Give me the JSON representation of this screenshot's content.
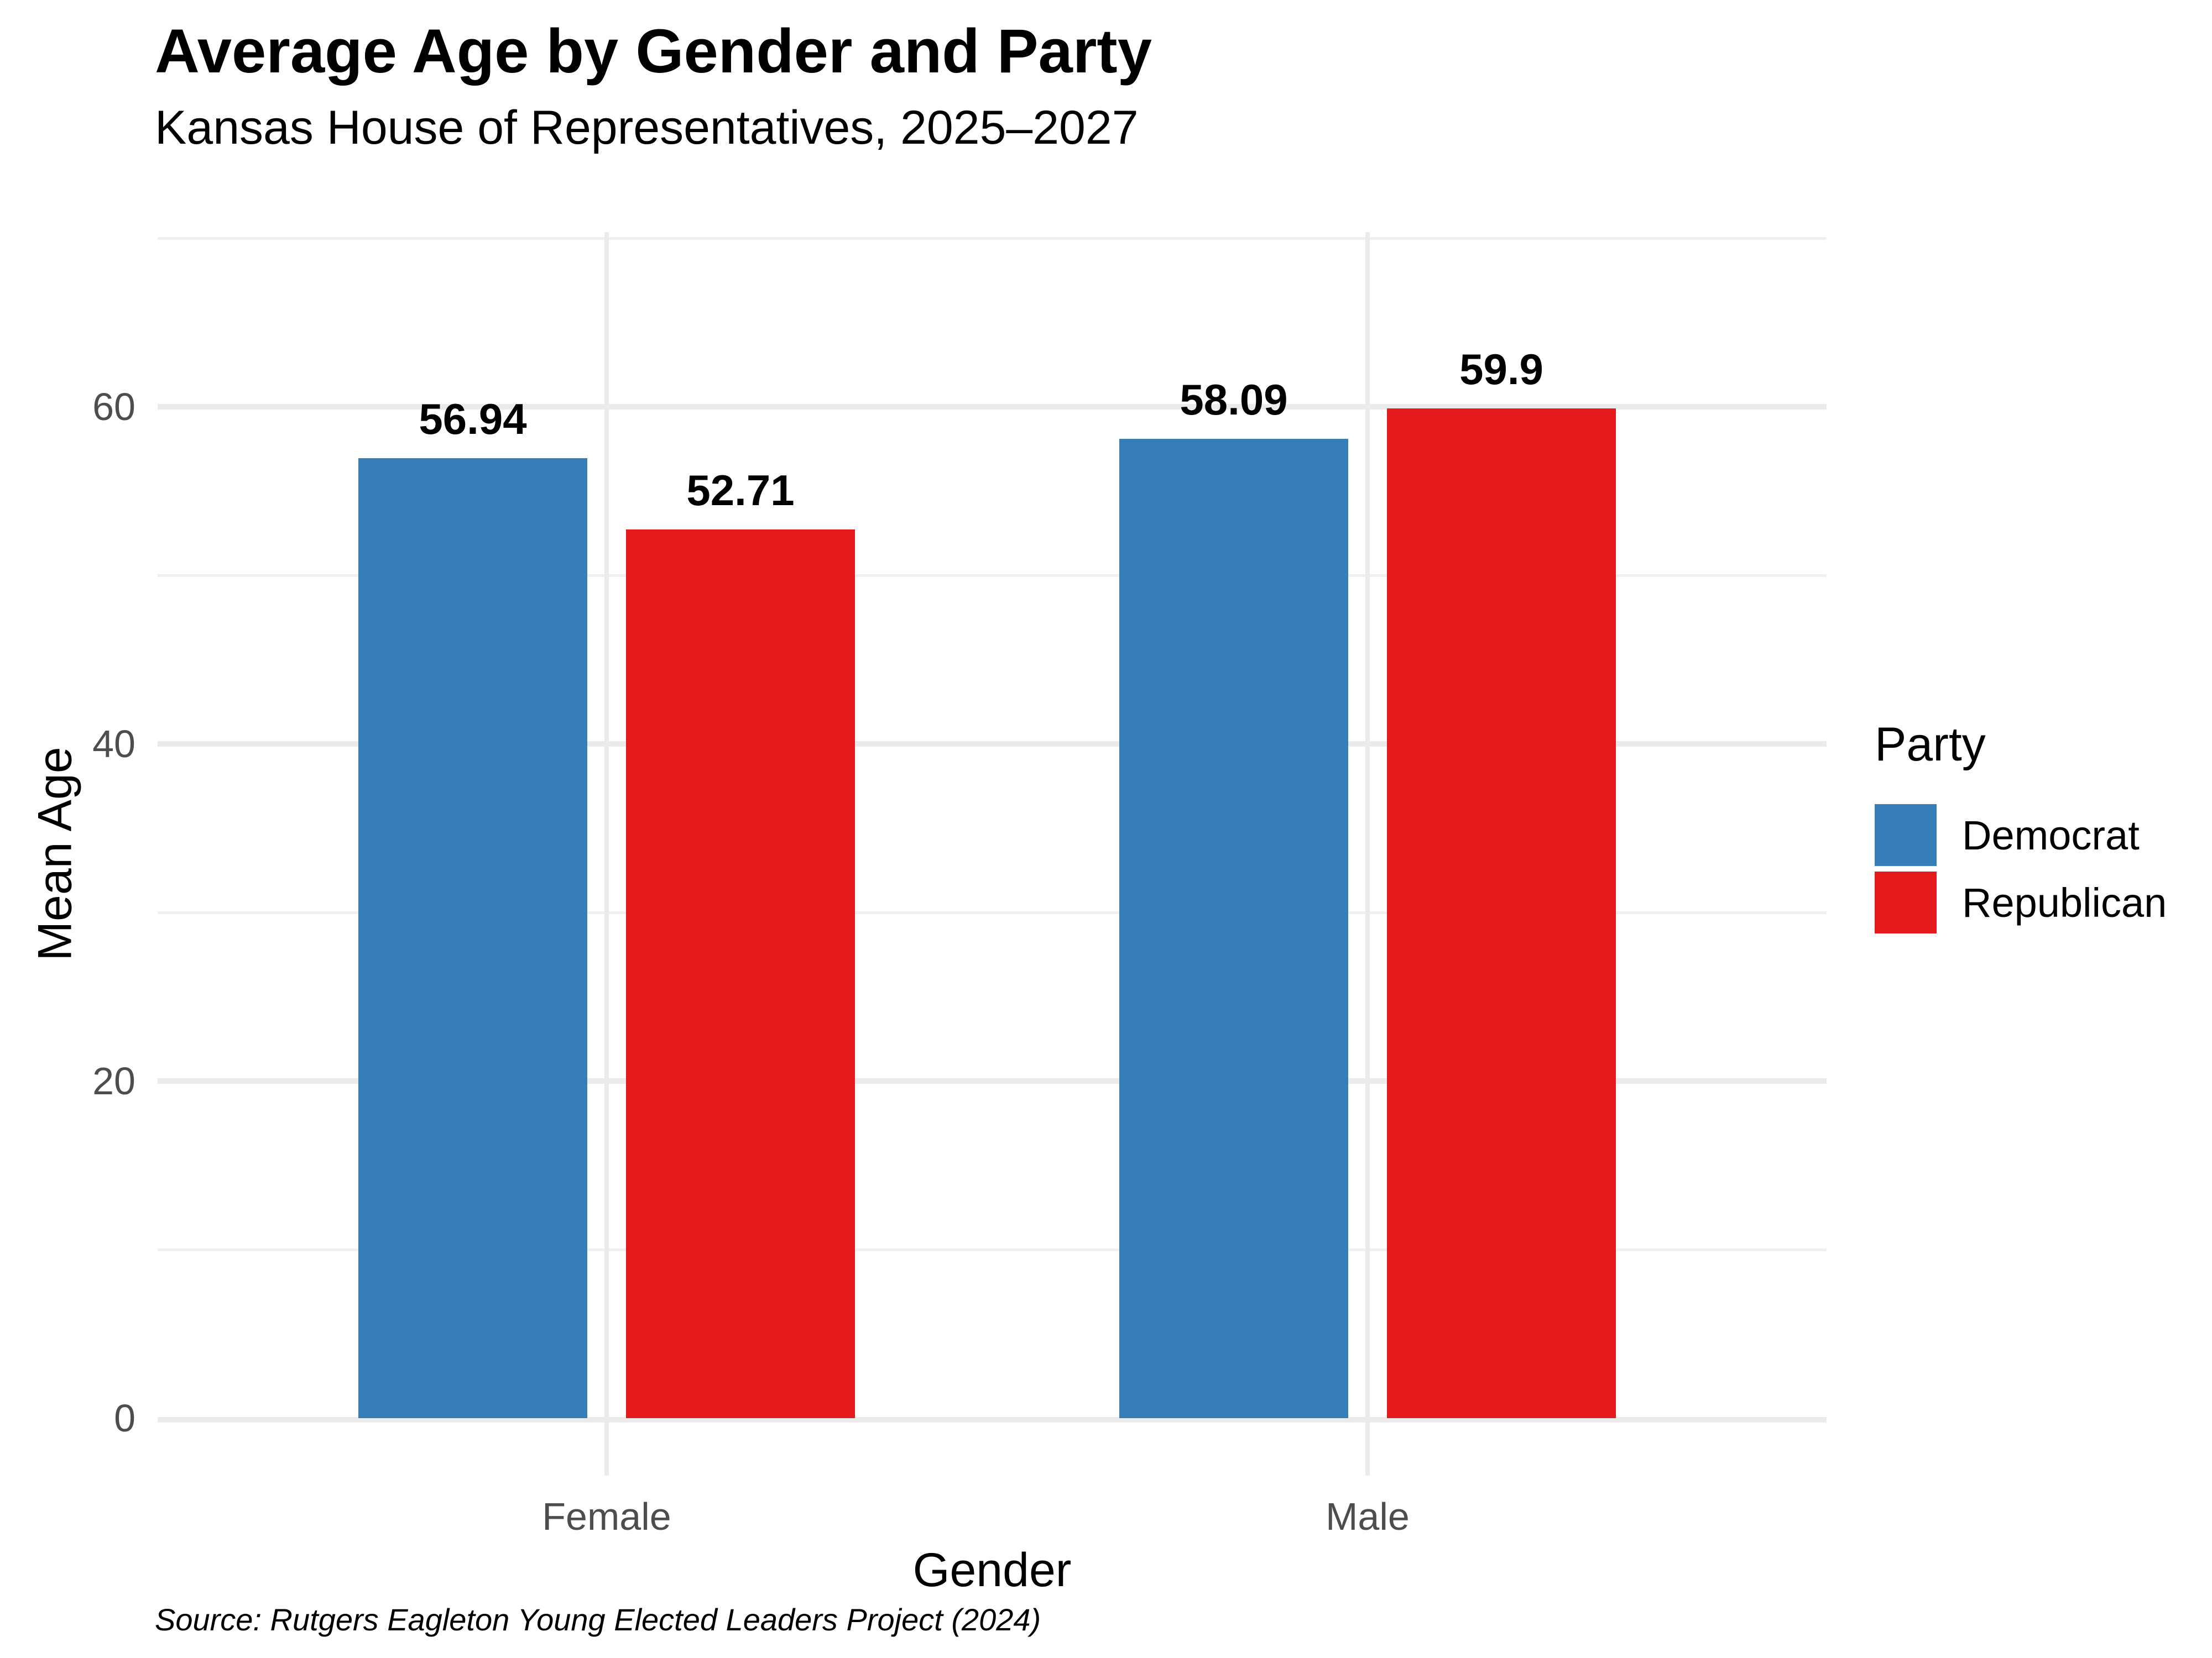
{
  "header": {
    "title": "Average Age by Gender and Party",
    "subtitle": "Kansas House of Representatives, 2025–2027"
  },
  "caption": "Source: Rutgers Eagleton Young Elected Leaders Project (2024)",
  "chart_data": {
    "type": "bar",
    "title": "Average Age by Gender and Party",
    "subtitle": "Kansas House of Representatives, 2025–2027",
    "categories": [
      "Female",
      "Male"
    ],
    "series": [
      {
        "name": "Democrat",
        "color": "#377EB8",
        "values": [
          56.94,
          58.09
        ]
      },
      {
        "name": "Republican",
        "color": "#E41A1C",
        "values": [
          52.71,
          59.9
        ]
      }
    ],
    "xlabel": "Gender",
    "ylabel": "Mean Age",
    "y_ticks": [
      0,
      20,
      40,
      60
    ],
    "y_minor_ticks": [
      10,
      30,
      50,
      70
    ],
    "ylim": [
      0,
      70.5
    ],
    "grid": true,
    "bar_value_labels": true,
    "legend_title": "Party",
    "legend_position": "right",
    "colors": {
      "grid_major": "#ebebeb",
      "grid_minor": "#f0f0f0",
      "tick_label": "#4d4d4d",
      "text": "#000000",
      "background": "#ffffff"
    }
  }
}
